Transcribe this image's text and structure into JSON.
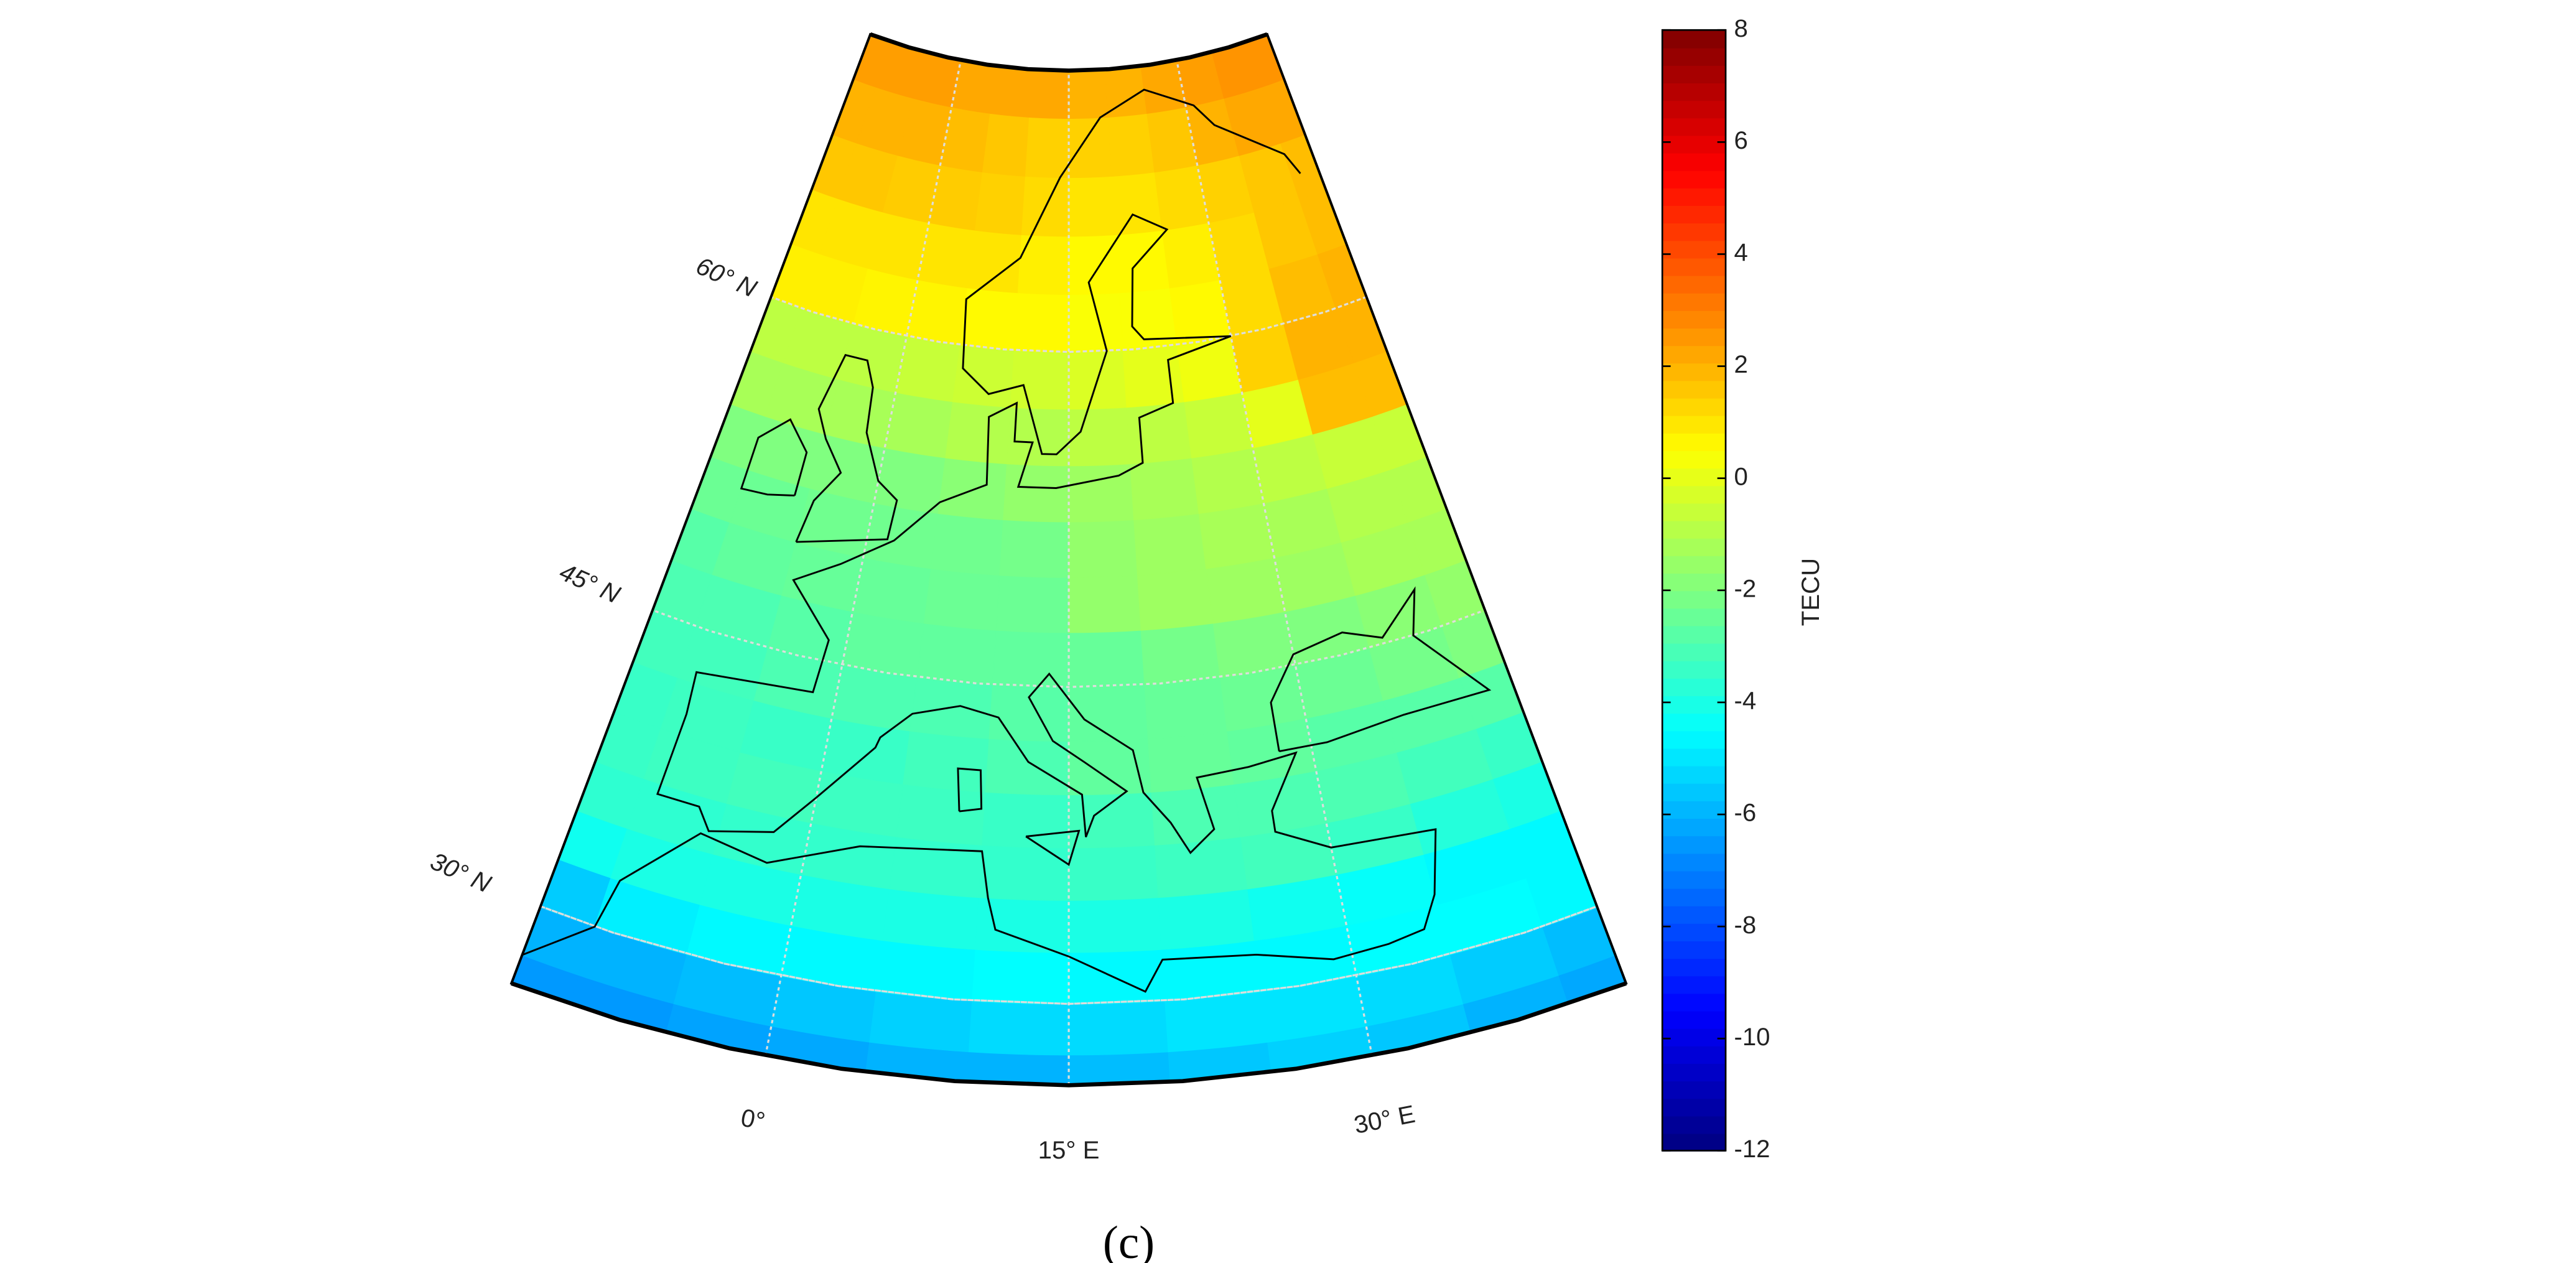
{
  "chart_data": {
    "type": "map",
    "lonlim": [
      -13,
      43
    ],
    "latlim": [
      26,
      72
    ],
    "lon_edges": [
      -15,
      -10,
      -5,
      0,
      5,
      10,
      15,
      20,
      25,
      30,
      35,
      40,
      45
    ],
    "lat_edges": [
      25,
      27.5,
      30,
      32.5,
      35,
      37.5,
      40,
      42.5,
      45,
      47.5,
      50,
      52.5,
      55,
      57.5,
      60,
      62.5,
      65,
      67.5,
      70,
      72.5,
      75
    ],
    "values": [
      [
        -6.5,
        -6.5,
        -6.3,
        -6.2,
        -6,
        -6,
        -5.8,
        -5.6,
        -5.4,
        -5.6,
        -6,
        -6.2
      ],
      [
        -6,
        -6,
        -5.8,
        -5.6,
        -5.4,
        -5.2,
        -5.2,
        -5,
        -5,
        -5.2,
        -5.5,
        -5.8
      ],
      [
        -5.5,
        -4.8,
        -4.6,
        -4.6,
        -4.6,
        -4.5,
        -4.6,
        -4.6,
        -4.6,
        -4.5,
        -4.5,
        -4.6
      ],
      [
        -4.2,
        -4,
        -4,
        -4,
        -4,
        -4,
        -4,
        -4,
        -4.2,
        -4.4,
        -4.6,
        -4.6
      ],
      [
        -3.6,
        -3.6,
        -3.5,
        -3.5,
        -3.5,
        -3.5,
        -3.4,
        -3.3,
        -3.2,
        -3.4,
        -3.8,
        -4
      ],
      [
        -3.4,
        -3.3,
        -3.2,
        -3.3,
        -3.3,
        -3.4,
        -3.2,
        -3,
        -3,
        -3,
        -3.2,
        -3.4
      ],
      [
        -3.4,
        -3.3,
        -3.4,
        -3.4,
        -3.2,
        -3,
        -2.6,
        -2.5,
        -2.6,
        -2.8,
        -2.8,
        -2.8
      ],
      [
        -3.2,
        -3.2,
        -3,
        -3,
        -3,
        -2.8,
        -2.6,
        -2.5,
        -2.4,
        -2.4,
        -2.2,
        -2
      ],
      [
        -3,
        -3,
        -2.8,
        -2.6,
        -2.6,
        -2.6,
        -2.5,
        -2.2,
        -2,
        -2,
        -1.8,
        -1.6
      ],
      [
        -2.8,
        -2.6,
        -2.5,
        -2.5,
        -2.4,
        -2.4,
        -1.6,
        -1.4,
        -1.4,
        -1.4,
        -1.2,
        -1.2
      ],
      [
        -2.4,
        -2.4,
        -2.3,
        -2.3,
        -2.3,
        -2.2,
        -1.6,
        -1.4,
        -1.2,
        -1.2,
        -1,
        -1
      ],
      [
        -2,
        -2,
        -2,
        -2,
        -1.8,
        -1.6,
        -1.4,
        -1.2,
        -1,
        -0.8,
        -0.6,
        -0.6
      ],
      [
        -1.2,
        -1.2,
        -1.2,
        -1.2,
        -1,
        -1,
        -0.8,
        -0.8,
        -0.6,
        0,
        1.8,
        1.8
      ],
      [
        -0.8,
        -0.8,
        -0.8,
        -0.6,
        -0.5,
        -0.4,
        -0.2,
        0,
        0.2,
        1.4,
        2,
        2
      ],
      [
        0.8,
        0.8,
        0.7,
        0.7,
        0.6,
        0.6,
        0.4,
        0.4,
        0.6,
        1.2,
        1.8,
        2
      ],
      [
        1,
        1,
        1,
        1,
        1,
        0.8,
        0.6,
        0.6,
        0.8,
        1.2,
        1.6,
        1.8
      ],
      [
        1.6,
        1.6,
        1.5,
        1.5,
        1.4,
        1.2,
        1,
        1,
        1.2,
        1.4,
        1.6,
        1.8
      ],
      [
        2,
        2,
        2,
        1.8,
        1.6,
        1.4,
        1.4,
        1.4,
        1.6,
        2,
        2.2,
        2.2
      ],
      [
        2.4,
        2.4,
        2.4,
        2.2,
        2.2,
        2.2,
        2,
        2,
        2.2,
        2.4,
        2.6,
        2.6
      ],
      [
        2.6,
        2.6,
        2.6,
        2.4,
        2.4,
        2.4,
        2.2,
        2.2,
        2.4,
        2.6,
        2.8,
        2.8
      ]
    ],
    "lat_ticks": [
      {
        "value": 30,
        "label": "30° N"
      },
      {
        "value": 45,
        "label": "45° N"
      },
      {
        "value": 60,
        "label": "60° N"
      }
    ],
    "lon_ticks": [
      {
        "value": 0,
        "label": "0°"
      },
      {
        "value": 15,
        "label": "15° E"
      },
      {
        "value": 30,
        "label": "30° E"
      }
    ],
    "colorbar": {
      "label": "TECU",
      "clim": [
        -12,
        8
      ],
      "ticks": [
        8,
        6,
        4,
        2,
        0,
        -2,
        -4,
        -6,
        -8,
        -10,
        -12
      ]
    },
    "caption": "(c)"
  }
}
